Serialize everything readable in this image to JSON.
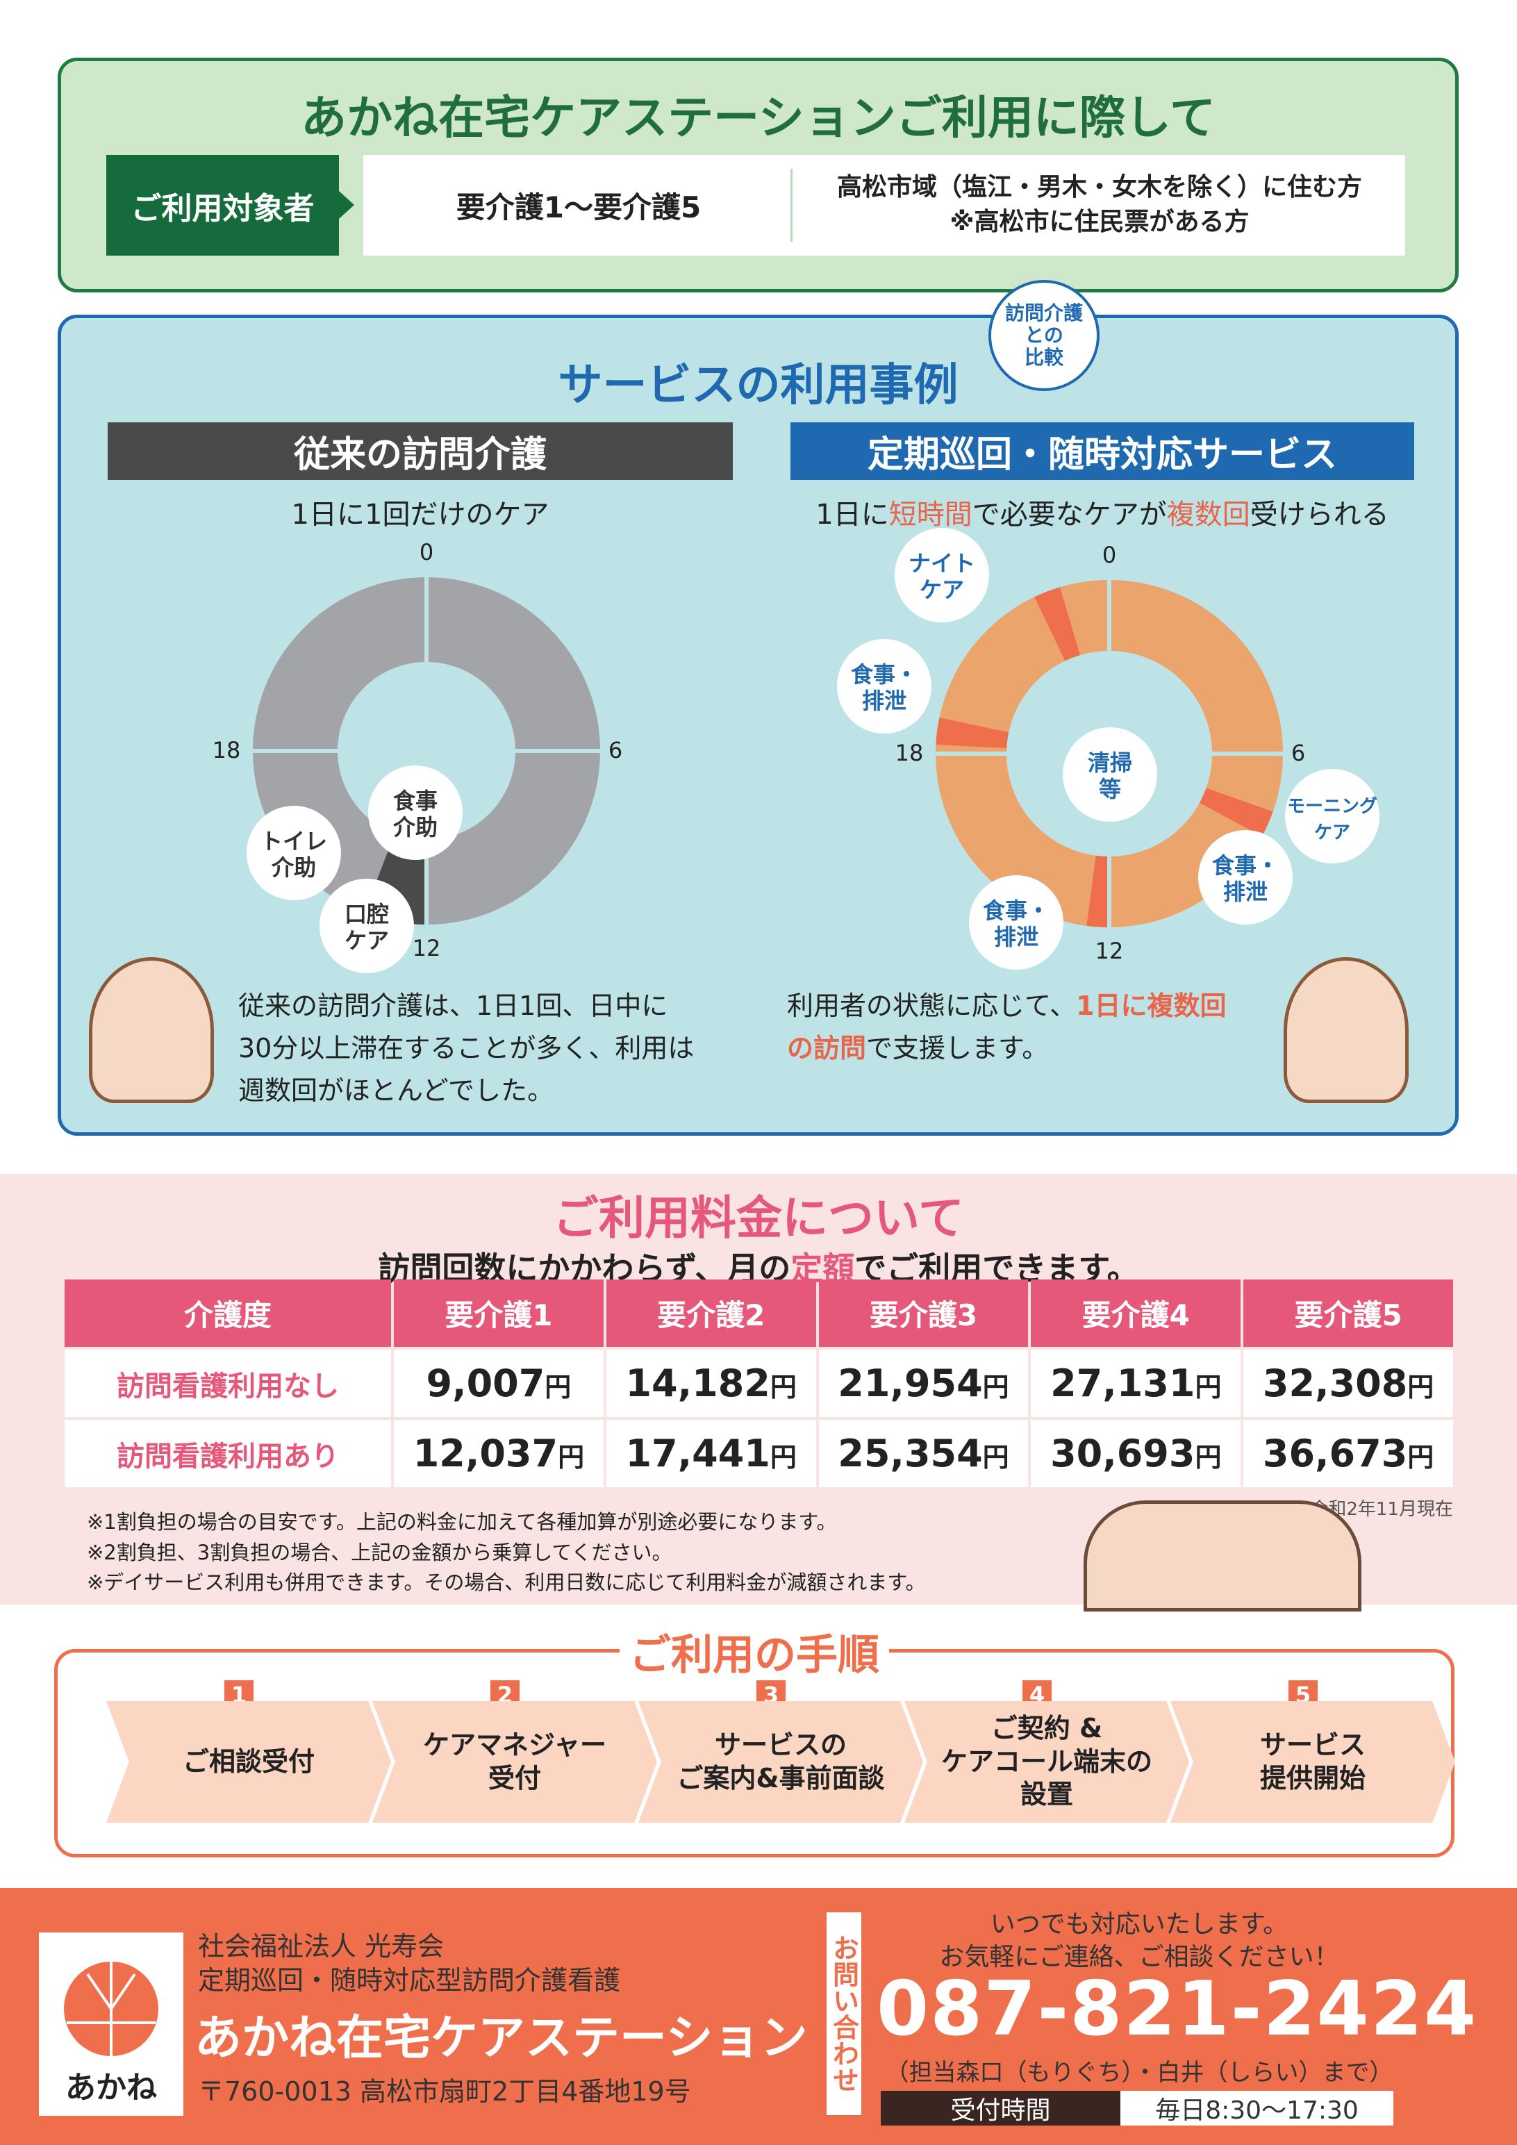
{
  "eligibility": {
    "title": "あかね在宅ケアステーションご利用に際して",
    "tag": "ご利用対象者",
    "care_level": "要介護1～要介護5",
    "area_line1": "高松市域（塩江・男木・女木を除く）に住む方",
    "area_line2": "※高松市に住民票がある方"
  },
  "service": {
    "title": "サービスの利用事例",
    "badge": [
      "訪問介護",
      "との",
      "比較"
    ],
    "left": {
      "header": "従来の訪問介護",
      "subtitle": "1日に1回だけのケア",
      "ticks": [
        "0",
        "6",
        "12",
        "18"
      ],
      "bubbles": [
        "食事\n介助",
        "トイレ\n介助",
        "口腔\nケア"
      ],
      "segments_hours": [
        [
          12,
          13.4
        ]
      ],
      "text": [
        "従来の訪問介護は、1日1回、日中に",
        "30分以上滞在することが多く、利用は",
        "週数回がほとんどでした。"
      ]
    },
    "right": {
      "header": "定期巡回・随時対応サービス",
      "subtitle_parts": [
        "1日に",
        "短時間",
        "で必要なケアが",
        "複数回",
        "受けられる"
      ],
      "ticks": [
        "0",
        "6",
        "12",
        "18"
      ],
      "bubbles": [
        "ナイト\nケア",
        "食事・\n排泄",
        "清掃\n等",
        "モーニング\nケア",
        "食事・\n排泄",
        "食事・\n排泄"
      ],
      "segments_hours": [
        [
          22.3,
          22.9
        ],
        [
          18.2,
          18.8
        ],
        [
          7.3,
          7.9
        ],
        [
          12,
          12.5
        ]
      ],
      "text_parts": [
        "利用者の状態に応じて、",
        "1日に複数回",
        "の訪問",
        "で支援します。"
      ]
    }
  },
  "pricing": {
    "title": "ご利用料金について",
    "subtitle_parts": [
      "訪問回数にかかわらず、月の",
      "定額",
      "でご利用できます。"
    ],
    "columns": [
      "介護度",
      "要介護1",
      "要介護2",
      "要介護3",
      "要介護4",
      "要介護5"
    ],
    "rows": [
      {
        "label": "訪問看護利用なし",
        "values": [
          "9,007",
          "14,182",
          "21,954",
          "27,131",
          "32,308"
        ]
      },
      {
        "label": "訪問看護利用あり",
        "values": [
          "12,037",
          "17,441",
          "25,354",
          "30,693",
          "36,673"
        ]
      }
    ],
    "unit": "円",
    "as_of": "※令和2年11月現在",
    "notes": [
      "※1割負担の場合の目安です。上記の料金に加えて各種加算が別途必要になります。",
      "※2割負担、3割負担の場合、上記の金額から乗算してください。",
      "※デイサービス利用も併用できます。その場合、利用日数に応じて利用料金が減額されます。"
    ]
  },
  "procedure": {
    "title": "ご利用の手順",
    "steps": [
      {
        "n": "1",
        "label": "ご相談受付"
      },
      {
        "n": "2",
        "label": "ケアマネジャー\n受付"
      },
      {
        "n": "3",
        "label": "サービスの\nご案内&事前面談"
      },
      {
        "n": "4",
        "label": "ご契約 &\nケアコール端末の\n設置"
      },
      {
        "n": "5",
        "label": "サービス\n提供開始"
      }
    ]
  },
  "footer": {
    "logo_text": "あかね",
    "org": "社会福祉法人 光寿会",
    "service_type": "定期巡回・随時対応型訪問介護看護",
    "name": "あかね在宅ケアステーション",
    "address": "〒760-0013  高松市扇町2丁目4番地19号",
    "contact_label": "お問い合わせ",
    "msg1": "いつでも対応いたします。",
    "msg2": "お気軽にご連絡、ご相談ください！",
    "phone": "087-821-2424",
    "persons": "（担当森口（もりぐち）・白井（しらい）まで）",
    "hours_label": "受付時間",
    "hours": "毎日8:30～17:30"
  },
  "colors": {
    "green": "#1f6e3c",
    "blue": "#1f69b0",
    "orange": "#ef6e4b",
    "pink": "#e5587a",
    "gray_ring": "#a3a4a7",
    "orange_ring": "#eaa46c"
  }
}
